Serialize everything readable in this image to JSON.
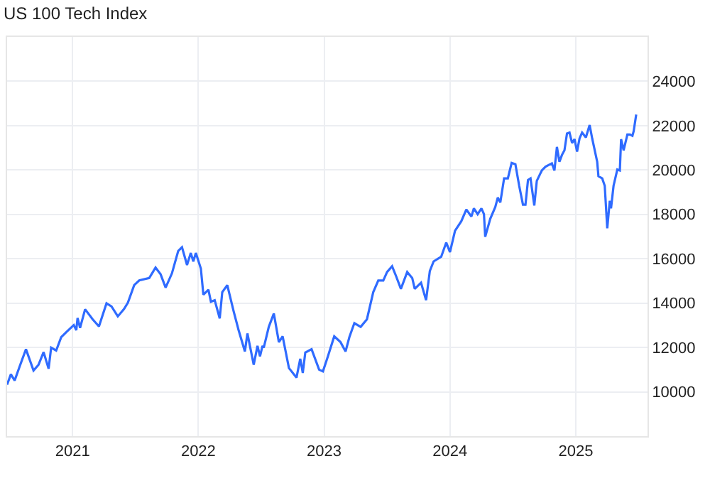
{
  "chart_data": {
    "type": "line",
    "title": "US 100 Tech Index",
    "x": [
      2020.48,
      2020.51,
      2020.54,
      2020.58,
      2020.63,
      2020.69,
      2020.73,
      2020.77,
      2020.81,
      2020.83,
      2020.87,
      2020.91,
      2020.95,
      2021.01,
      2021.03,
      2021.04,
      2021.06,
      2021.1,
      2021.16,
      2021.21,
      2021.27,
      2021.31,
      2021.36,
      2021.41,
      2021.44,
      2021.49,
      2021.53,
      2021.61,
      2021.66,
      2021.7,
      2021.74,
      2021.79,
      2021.84,
      2021.87,
      2021.91,
      2021.94,
      2021.96,
      2021.98,
      2022.02,
      2022.04,
      2022.08,
      2022.1,
      2022.13,
      2022.17,
      2022.19,
      2022.23,
      2022.28,
      2022.32,
      2022.37,
      2022.39,
      2022.44,
      2022.47,
      2022.49,
      2022.51,
      2022.52,
      2022.56,
      2022.6,
      2022.64,
      2022.67,
      2022.72,
      2022.78,
      2022.81,
      2022.83,
      2022.85,
      2022.9,
      2022.96,
      2022.99,
      2023.03,
      2023.08,
      2023.13,
      2023.17,
      2023.2,
      2023.24,
      2023.29,
      2023.34,
      2023.39,
      2023.43,
      2023.47,
      2023.5,
      2023.54,
      2023.57,
      2023.61,
      2023.66,
      2023.7,
      2023.72,
      2023.77,
      2023.81,
      2023.84,
      2023.87,
      2023.93,
      2023.97,
      2024.0,
      2024.04,
      2024.09,
      2024.13,
      2024.17,
      2024.19,
      2024.22,
      2024.25,
      2024.27,
      2024.28,
      2024.32,
      2024.36,
      2024.38,
      2024.4,
      2024.43,
      2024.46,
      2024.49,
      2024.52,
      2024.55,
      2024.58,
      2024.6,
      2024.62,
      2024.64,
      2024.67,
      2024.69,
      2024.73,
      2024.76,
      2024.81,
      2024.83,
      2024.85,
      2024.87,
      2024.89,
      2024.91,
      2024.93,
      2024.95,
      2024.97,
      2024.99,
      2025.01,
      2025.03,
      2025.05,
      2025.08,
      2025.11,
      2025.13,
      2025.17,
      2025.18,
      2025.21,
      2025.23,
      2025.25,
      2025.27,
      2025.28,
      2025.3,
      2025.33,
      2025.35,
      2025.36,
      2025.38,
      2025.41,
      2025.43,
      2025.45,
      2025.46,
      2025.48
    ],
    "series": [
      {
        "color": "#2f6bff",
        "values": [
          10320,
          10790,
          10510,
          11150,
          11920,
          10960,
          11220,
          11790,
          11040,
          11990,
          11860,
          12460,
          12690,
          13010,
          12780,
          13330,
          12880,
          13720,
          13270,
          12950,
          13990,
          13850,
          13400,
          13740,
          14020,
          14810,
          15020,
          15130,
          15600,
          15300,
          14700,
          15340,
          16350,
          16520,
          15720,
          16260,
          15880,
          16260,
          15560,
          14380,
          14600,
          14060,
          14130,
          13310,
          14490,
          14810,
          13640,
          12780,
          11820,
          12630,
          11220,
          12070,
          11600,
          12070,
          11990,
          12930,
          13530,
          12240,
          12500,
          11070,
          10640,
          11490,
          10850,
          11770,
          11920,
          11000,
          10920,
          11600,
          12500,
          12240,
          11820,
          12460,
          13100,
          12930,
          13270,
          14490,
          15020,
          15020,
          15400,
          15660,
          15240,
          14640,
          15400,
          15130,
          14640,
          14920,
          14130,
          15450,
          15880,
          16090,
          16730,
          16300,
          17260,
          17690,
          18220,
          17900,
          18270,
          18010,
          18270,
          18010,
          16990,
          17800,
          18330,
          18760,
          18540,
          19620,
          19620,
          20320,
          20260,
          19290,
          18440,
          18440,
          19550,
          19620,
          18400,
          19510,
          19980,
          20150,
          20300,
          19980,
          21040,
          20370,
          20680,
          20890,
          21650,
          21690,
          21220,
          21390,
          20830,
          21430,
          21690,
          21470,
          22030,
          21430,
          20370,
          19720,
          19620,
          19290,
          17370,
          18610,
          18270,
          19290,
          20020,
          19980,
          21390,
          20890,
          21600,
          21600,
          21540,
          21750,
          22500
        ]
      }
    ],
    "xlim": [
      2020.48,
      2025.57
    ],
    "xticks": [
      2021,
      2022,
      2023,
      2024,
      2025
    ],
    "ylim": [
      8000,
      26000
    ],
    "yticks": [
      10000,
      12000,
      14000,
      16000,
      18000,
      20000,
      22000,
      24000
    ],
    "grid": true,
    "legend": false,
    "line_style": "solid",
    "marker": "none"
  }
}
